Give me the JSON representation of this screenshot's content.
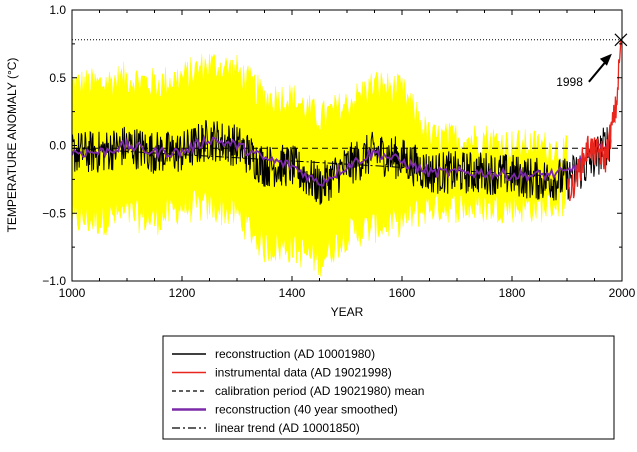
{
  "chart_data": {
    "type": "line",
    "title": "",
    "xlabel": "YEAR",
    "ylabel": "TEMPERATURE ANOMALY (°C)",
    "xlim": [
      1000,
      2000
    ],
    "ylim": [
      -1.0,
      1.0
    ],
    "xticks": [
      1000,
      1200,
      1400,
      1600,
      1800,
      2000
    ],
    "yticks": [
      -1.0,
      -0.5,
      0.0,
      0.5,
      1.0
    ],
    "ytick_labels": [
      "−1.0",
      "−0.5",
      "0.0",
      "0.5",
      "1.0"
    ],
    "reference_level": 0.78,
    "calibration_mean": -0.02,
    "annotation": {
      "text": "1998",
      "point": [
        1998,
        0.78
      ]
    },
    "linear_trend": {
      "x": [
        1000,
        1850
      ],
      "y": [
        -0.02,
        -0.22
      ]
    },
    "uncertainty_band": {
      "x": [
        1000,
        1050,
        1100,
        1150,
        1200,
        1250,
        1300,
        1350,
        1400,
        1450,
        1500,
        1550,
        1600,
        1650,
        1700,
        1750,
        1800,
        1850,
        1900
      ],
      "upper": [
        0.45,
        0.45,
        0.5,
        0.45,
        0.5,
        0.6,
        0.55,
        0.35,
        0.35,
        0.2,
        0.3,
        0.45,
        0.4,
        0.05,
        0.05,
        0.05,
        0.0,
        0.0,
        -0.05
      ],
      "lower": [
        -0.55,
        -0.55,
        -0.5,
        -0.55,
        -0.45,
        -0.45,
        -0.5,
        -0.75,
        -0.75,
        -0.85,
        -0.65,
        -0.6,
        -0.55,
        -0.45,
        -0.45,
        -0.45,
        -0.45,
        -0.45,
        -0.4
      ]
    },
    "series": [
      {
        "name": "reconstruction (AD 10001980)",
        "color": "#000000",
        "x": [
          1000,
          1050,
          1100,
          1150,
          1200,
          1250,
          1300,
          1350,
          1400,
          1450,
          1500,
          1550,
          1600,
          1650,
          1700,
          1750,
          1800,
          1850,
          1900,
          1950,
          1980
        ],
        "y": [
          -0.05,
          -0.05,
          0.0,
          -0.05,
          -0.05,
          0.05,
          0.0,
          -0.15,
          -0.15,
          -0.3,
          -0.15,
          -0.05,
          -0.1,
          -0.2,
          -0.2,
          -0.2,
          -0.22,
          -0.25,
          -0.25,
          -0.1,
          0.05
        ]
      },
      {
        "name": "instrumental data (AD 19021998)",
        "color": "#e8261e",
        "x": [
          1902,
          1910,
          1920,
          1930,
          1940,
          1950,
          1960,
          1970,
          1980,
          1990,
          1998
        ],
        "y": [
          -0.35,
          -0.3,
          -0.2,
          -0.1,
          0.0,
          -0.05,
          -0.05,
          -0.1,
          0.1,
          0.3,
          0.78
        ]
      },
      {
        "name": "calibration period (AD 19021980) mean",
        "color": "#000000",
        "x": [
          1000,
          2000
        ],
        "y": [
          -0.02,
          -0.02
        ]
      },
      {
        "name": "reconstruction (40 year smoothed)",
        "color": "#7b2aa8",
        "x": [
          1000,
          1050,
          1100,
          1150,
          1200,
          1250,
          1300,
          1350,
          1400,
          1450,
          1500,
          1550,
          1600,
          1650,
          1700,
          1750,
          1800,
          1850,
          1900,
          1950,
          1980
        ],
        "y": [
          -0.05,
          -0.05,
          0.0,
          -0.05,
          -0.05,
          0.05,
          0.0,
          -0.1,
          -0.15,
          -0.28,
          -0.15,
          -0.05,
          -0.12,
          -0.2,
          -0.2,
          -0.2,
          -0.22,
          -0.22,
          -0.2,
          -0.05,
          0.05
        ]
      },
      {
        "name": "linear trend (AD 10001850)",
        "color": "#000000",
        "x": [
          1000,
          1850
        ],
        "y": [
          -0.02,
          -0.22
        ]
      }
    ]
  }
}
